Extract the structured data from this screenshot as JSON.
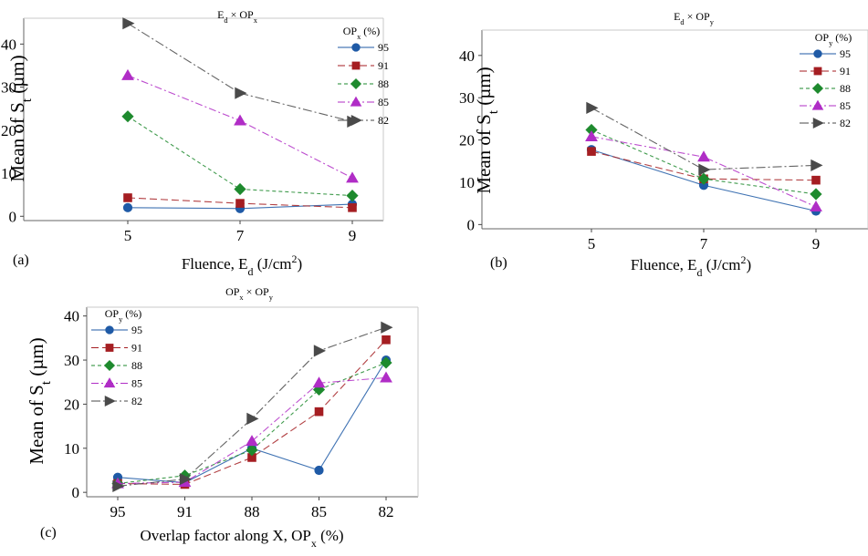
{
  "chart_data": [
    {
      "panel_label": "(a)",
      "type": "line",
      "title": {
        "base": "E",
        "sub1": "d",
        "mid": " × OP",
        "sub2": "x"
      },
      "ylabel": {
        "base": "Mean of S",
        "sub": "t",
        "rest": " (µm)"
      },
      "xlabel": {
        "base": "Fluence, E",
        "sub": "d",
        "rest": " (J/cm",
        "sup": "2",
        "end": ")"
      },
      "legend_title": {
        "base": "OP",
        "sub": "x",
        "rest": " (%)"
      },
      "legend_position": "top-right",
      "categories": [
        "5",
        "7",
        "9"
      ],
      "ylim": [
        -1,
        46
      ],
      "yticks": [
        "0",
        "10",
        "20",
        "30",
        "40"
      ],
      "series": [
        {
          "name": "95",
          "color": "#1f5aa6",
          "marker": "circle",
          "dash": "",
          "values": [
            2.0,
            1.8,
            2.8
          ]
        },
        {
          "name": "91",
          "color": "#a51e22",
          "marker": "square",
          "dash": "8,4",
          "values": [
            4.3,
            3.0,
            2.0
          ]
        },
        {
          "name": "88",
          "color": "#1e8a2e",
          "marker": "diamond",
          "dash": "4,3",
          "values": [
            23.2,
            6.3,
            4.8
          ]
        },
        {
          "name": "85",
          "color": "#b02dc6",
          "marker": "triangle",
          "dash": "8,3,2,3",
          "values": [
            32.7,
            22.2,
            8.9
          ]
        },
        {
          "name": "82",
          "color": "#4a4a4a",
          "marker": "arrow",
          "dash": "10,3,2,3",
          "values": [
            44.8,
            28.6,
            22.0
          ]
        }
      ]
    },
    {
      "panel_label": "(b)",
      "type": "line",
      "title": {
        "base": "E",
        "sub1": "d",
        "mid": " × OP",
        "sub2": "y"
      },
      "ylabel": {
        "base": "Mean of S",
        "sub": "t",
        "rest": " (µm)"
      },
      "xlabel": {
        "base": "Fluence, E",
        "sub": "d",
        "rest": " (J/cm",
        "sup": "2",
        "end": ")"
      },
      "legend_title": {
        "base": "OP",
        "sub": "y",
        "rest": " (%)"
      },
      "legend_position": "top-right",
      "categories": [
        "5",
        "7",
        "9"
      ],
      "ylim": [
        -1,
        46
      ],
      "yticks": [
        "0",
        "10",
        "20",
        "30",
        "40"
      ],
      "series": [
        {
          "name": "95",
          "color": "#1f5aa6",
          "marker": "circle",
          "dash": "",
          "values": [
            17.7,
            9.3,
            3.2
          ]
        },
        {
          "name": "91",
          "color": "#a51e22",
          "marker": "square",
          "dash": "8,4",
          "values": [
            17.3,
            10.8,
            10.5
          ]
        },
        {
          "name": "88",
          "color": "#1e8a2e",
          "marker": "diamond",
          "dash": "4,3",
          "values": [
            22.4,
            10.8,
            7.2
          ]
        },
        {
          "name": "85",
          "color": "#b02dc6",
          "marker": "triangle",
          "dash": "8,3,2,3",
          "values": [
            20.8,
            16.0,
            4.2
          ]
        },
        {
          "name": "82",
          "color": "#4a4a4a",
          "marker": "arrow",
          "dash": "10,3,2,3",
          "values": [
            27.6,
            13.0,
            14.0
          ]
        }
      ]
    },
    {
      "panel_label": "(c)",
      "type": "line",
      "title": {
        "base": "OP",
        "sub1": "x",
        "mid": " × OP",
        "sub2": "y"
      },
      "ylabel": {
        "base": "Mean of S",
        "sub": "t",
        "rest": " (µm)"
      },
      "xlabel": {
        "base": "Overlap factor along X, OP",
        "sub": "x",
        "rest": " (%)",
        "sup": "",
        "end": ""
      },
      "legend_title": {
        "base": "OP",
        "sub": "y",
        "rest": " (%)"
      },
      "legend_position": "top-left",
      "categories": [
        "95",
        "91",
        "88",
        "85",
        "82"
      ],
      "ylim": [
        -1,
        42
      ],
      "yticks": [
        "0",
        "10",
        "20",
        "30",
        "40"
      ],
      "series": [
        {
          "name": "95",
          "color": "#1f5aa6",
          "marker": "circle",
          "dash": "",
          "values": [
            3.4,
            2.2,
            10.0,
            5.0,
            30.0
          ]
        },
        {
          "name": "91",
          "color": "#a51e22",
          "marker": "square",
          "dash": "8,4",
          "values": [
            2.0,
            1.8,
            7.9,
            18.3,
            34.6
          ]
        },
        {
          "name": "88",
          "color": "#1e8a2e",
          "marker": "diamond",
          "dash": "4,3",
          "values": [
            2.0,
            3.8,
            9.6,
            23.3,
            29.4
          ]
        },
        {
          "name": "85",
          "color": "#b02dc6",
          "marker": "triangle",
          "dash": "8,3,2,3",
          "values": [
            2.0,
            2.3,
            11.6,
            24.8,
            26.0
          ]
        },
        {
          "name": "82",
          "color": "#4a4a4a",
          "marker": "arrow",
          "dash": "10,3,2,3",
          "values": [
            1.4,
            3.0,
            16.7,
            32.1,
            37.4
          ]
        }
      ]
    }
  ]
}
